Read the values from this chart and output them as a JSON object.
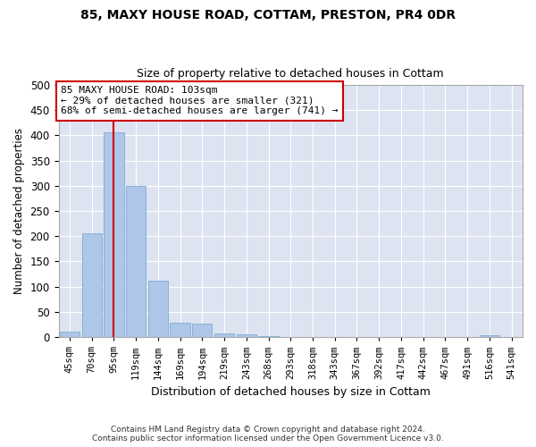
{
  "title1": "85, MAXY HOUSE ROAD, COTTAM, PRESTON, PR4 0DR",
  "title2": "Size of property relative to detached houses in Cottam",
  "xlabel": "Distribution of detached houses by size in Cottam",
  "ylabel": "Number of detached properties",
  "bar_color": "#aec6e8",
  "bar_edge_color": "#7aadd4",
  "background_color": "#dde3f0",
  "grid_color": "#ffffff",
  "fig_bg_color": "#ffffff",
  "categories": [
    "45sqm",
    "70sqm",
    "95sqm",
    "119sqm",
    "144sqm",
    "169sqm",
    "194sqm",
    "219sqm",
    "243sqm",
    "268sqm",
    "293sqm",
    "318sqm",
    "343sqm",
    "367sqm",
    "392sqm",
    "417sqm",
    "442sqm",
    "467sqm",
    "491sqm",
    "516sqm",
    "541sqm"
  ],
  "values": [
    10,
    205,
    405,
    300,
    112,
    28,
    27,
    8,
    5,
    2,
    0,
    0,
    0,
    0,
    0,
    0,
    0,
    0,
    0,
    4,
    0
  ],
  "ylim": [
    0,
    500
  ],
  "yticks": [
    0,
    50,
    100,
    150,
    200,
    250,
    300,
    350,
    400,
    450,
    500
  ],
  "property_bin_index": 2,
  "vline_color": "#cc0000",
  "annotation_box_color": "#ffffff",
  "annotation_border_color": "#cc0000",
  "annotation_text_line1": "85 MAXY HOUSE ROAD: 103sqm",
  "annotation_text_line2": "← 29% of detached houses are smaller (321)",
  "annotation_text_line3": "68% of semi-detached houses are larger (741) →",
  "footer1": "Contains HM Land Registry data © Crown copyright and database right 2024.",
  "footer2": "Contains public sector information licensed under the Open Government Licence v3.0."
}
